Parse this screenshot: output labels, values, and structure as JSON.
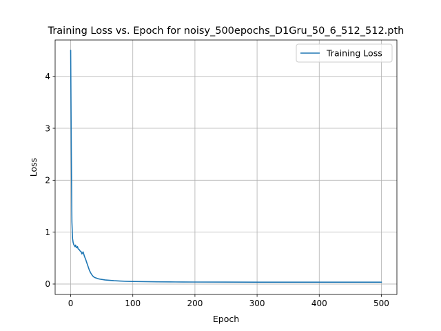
{
  "chart_data": {
    "type": "line",
    "title": "Training Loss vs. Epoch for noisy_500epochs_D1Gru_50_6_512_512.pth",
    "xlabel": "Epoch",
    "ylabel": "Loss",
    "xlim": [
      -25,
      525
    ],
    "ylim": [
      -0.2,
      4.7
    ],
    "xticks": [
      0,
      100,
      200,
      300,
      400,
      500
    ],
    "yticks": [
      0,
      1,
      2,
      3,
      4
    ],
    "grid": true,
    "legend_position": "top-right",
    "series": [
      {
        "name": "Training Loss",
        "color": "#1f77b4",
        "x": [
          0,
          1,
          2,
          3,
          4,
          5,
          6,
          7,
          8,
          9,
          10,
          11,
          12,
          13,
          14,
          15,
          16,
          17,
          18,
          19,
          20,
          22,
          24,
          26,
          28,
          30,
          32,
          34,
          36,
          38,
          40,
          45,
          50,
          55,
          60,
          70,
          80,
          90,
          100,
          120,
          140,
          160,
          180,
          200,
          250,
          300,
          350,
          400,
          450,
          500
        ],
        "y": [
          4.5,
          2.6,
          1.2,
          0.88,
          0.8,
          0.76,
          0.74,
          0.72,
          0.75,
          0.71,
          0.7,
          0.72,
          0.68,
          0.67,
          0.66,
          0.64,
          0.63,
          0.62,
          0.58,
          0.6,
          0.62,
          0.54,
          0.48,
          0.41,
          0.34,
          0.27,
          0.22,
          0.18,
          0.15,
          0.13,
          0.12,
          0.1,
          0.09,
          0.08,
          0.075,
          0.065,
          0.058,
          0.053,
          0.05,
          0.046,
          0.043,
          0.041,
          0.04,
          0.039,
          0.038,
          0.037,
          0.037,
          0.036,
          0.036,
          0.036
        ]
      }
    ]
  }
}
